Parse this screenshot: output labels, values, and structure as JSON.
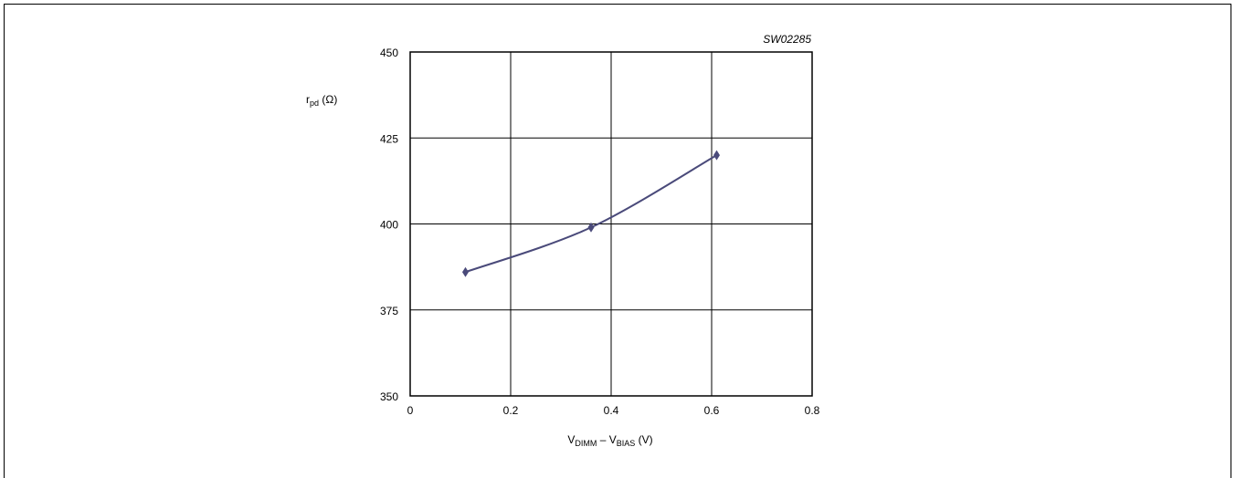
{
  "figure_code": "SW02285",
  "chart_data": {
    "type": "line",
    "title": "",
    "xlabel": {
      "main1": "V",
      "sub1": "DIMM",
      "mid": " – V",
      "sub2": "BIAS",
      "tail": " (V)"
    },
    "ylabel": {
      "main": "r",
      "sub": "pd",
      "tail": " (Ω)"
    },
    "xlim": [
      0,
      0.8
    ],
    "ylim": [
      350,
      450
    ],
    "xticks": [
      0,
      0.2,
      0.4,
      0.6,
      0.8
    ],
    "yticks": [
      350,
      375,
      400,
      425,
      450
    ],
    "xtick_labels": [
      "0",
      "0.2",
      "0.4",
      "0.6",
      "0.8"
    ],
    "ytick_labels": [
      "350",
      "375",
      "400",
      "425",
      "450"
    ],
    "grid": true,
    "series": [
      {
        "x": [
          0.11,
          0.36,
          0.61
        ],
        "y": [
          386,
          399,
          420
        ],
        "color": "#4a4a7a",
        "marker": "diamond"
      }
    ]
  }
}
